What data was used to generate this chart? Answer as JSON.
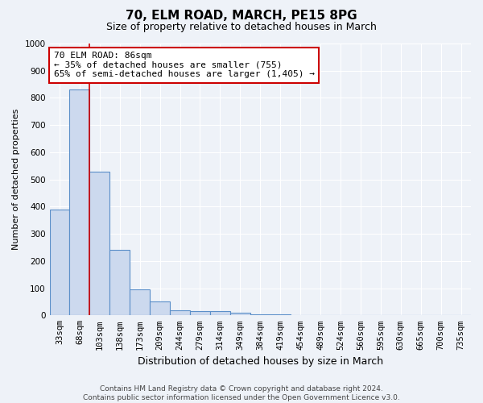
{
  "title1": "70, ELM ROAD, MARCH, PE15 8PG",
  "title2": "Size of property relative to detached houses in March",
  "xlabel": "Distribution of detached houses by size in March",
  "ylabel": "Number of detached properties",
  "categories": [
    "33sqm",
    "68sqm",
    "103sqm",
    "138sqm",
    "173sqm",
    "209sqm",
    "244sqm",
    "279sqm",
    "314sqm",
    "349sqm",
    "384sqm",
    "419sqm",
    "454sqm",
    "489sqm",
    "524sqm",
    "560sqm",
    "595sqm",
    "630sqm",
    "665sqm",
    "700sqm",
    "735sqm"
  ],
  "bar_values": [
    390,
    830,
    530,
    240,
    95,
    50,
    20,
    15,
    15,
    10,
    5,
    3,
    2,
    2,
    1,
    1,
    1,
    1,
    1,
    1,
    1
  ],
  "bar_color": "#ccd9ee",
  "bar_edgecolor": "#5b8fc9",
  "red_line_index": 1.5,
  "annotation_line1": "70 ELM ROAD: 86sqm",
  "annotation_line2": "← 35% of detached houses are smaller (755)",
  "annotation_line3": "65% of semi-detached houses are larger (1,405) →",
  "annotation_box_facecolor": "#ffffff",
  "annotation_box_edgecolor": "#cc0000",
  "ylim": [
    0,
    1000
  ],
  "yticks": [
    0,
    100,
    200,
    300,
    400,
    500,
    600,
    700,
    800,
    900,
    1000
  ],
  "footer1": "Contains HM Land Registry data © Crown copyright and database right 2024.",
  "footer2": "Contains public sector information licensed under the Open Government Licence v3.0.",
  "bg_color": "#eef2f8",
  "grid_color": "#ffffff",
  "title1_fontsize": 11,
  "title2_fontsize": 9,
  "ylabel_fontsize": 8,
  "xlabel_fontsize": 9,
  "tick_fontsize": 7.5,
  "footer_fontsize": 6.5
}
